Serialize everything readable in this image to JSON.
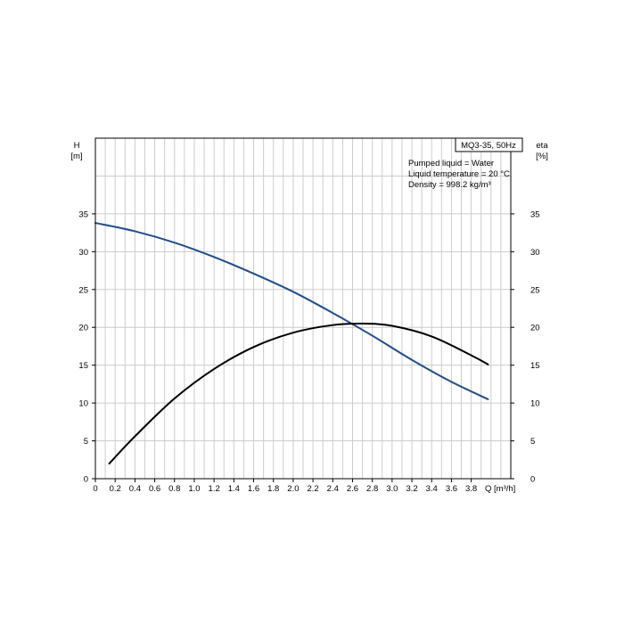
{
  "chart_data": {
    "type": "line",
    "title": "MQ3-35, 50Hz",
    "info": [
      "Pumped liquid = Water",
      "Liquid temperature = 20 °C",
      "Density = 998.2 kg/m³"
    ],
    "xlabel": "Q [m³/h]",
    "ylabel_left": [
      "H",
      "[m]"
    ],
    "ylabel_right": [
      "eta",
      "[%]"
    ],
    "xlim": [
      0,
      4.2
    ],
    "ylim": [
      0,
      45
    ],
    "x_ticks": [
      "0",
      "0.2",
      "0.4",
      "0.6",
      "0.8",
      "1.0",
      "1.2",
      "1.4",
      "1.6",
      "1.8",
      "2.0",
      "2.2",
      "2.4",
      "2.6",
      "2.8",
      "3.0",
      "3.2",
      "3.4",
      "3.6",
      "3.8"
    ],
    "x_tick_values": [
      0,
      0.2,
      0.4,
      0.6,
      0.8,
      1.0,
      1.2,
      1.4,
      1.6,
      1.8,
      2.0,
      2.2,
      2.4,
      2.6,
      2.8,
      3.0,
      3.2,
      3.4,
      3.6,
      3.8
    ],
    "y_ticks": [
      "0",
      "5",
      "10",
      "15",
      "20",
      "25",
      "30",
      "35"
    ],
    "y_tick_values": [
      0,
      5,
      10,
      15,
      20,
      25,
      30,
      35
    ],
    "grid": true,
    "series": [
      {
        "color": "#1f4e8a",
        "x": [
          0,
          0.4,
          0.8,
          1.2,
          1.6,
          2.0,
          2.4,
          2.8,
          3.2,
          3.6,
          3.97
        ],
        "y": [
          33.8,
          32.7,
          31.2,
          29.3,
          27.1,
          24.7,
          21.9,
          18.9,
          15.7,
          12.8,
          10.5
        ]
      },
      {
        "color": "#000000",
        "x": [
          0.14,
          0.4,
          0.8,
          1.2,
          1.6,
          2.0,
          2.4,
          2.7,
          3.0,
          3.4,
          3.8,
          3.97
        ],
        "y": [
          2.0,
          5.6,
          10.6,
          14.5,
          17.4,
          19.3,
          20.3,
          20.5,
          20.2,
          18.8,
          16.3,
          15.1
        ]
      }
    ]
  }
}
